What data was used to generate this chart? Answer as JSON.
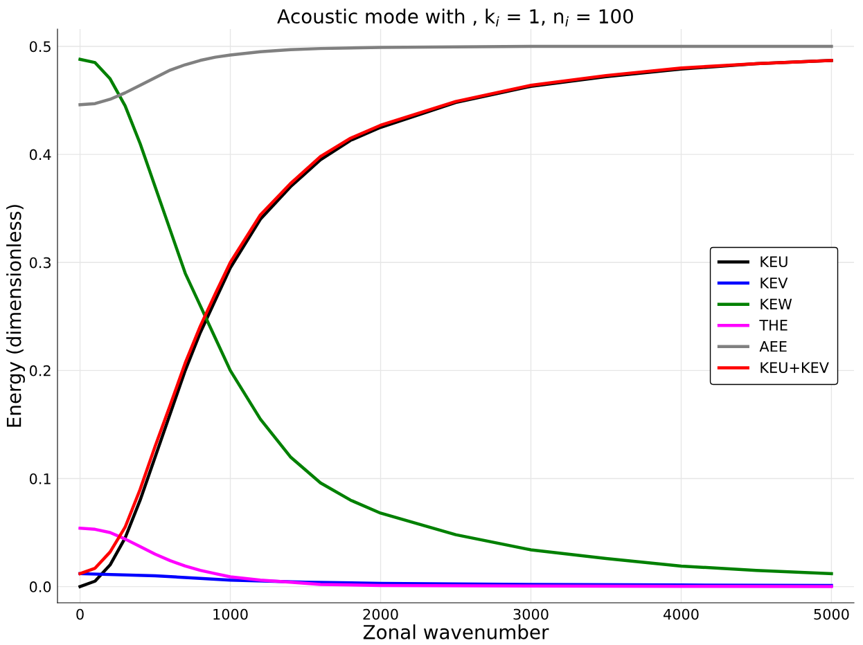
{
  "chart_data": {
    "type": "line",
    "title": "Acoustic mode with , k$_{i}$ = 1, n$_{i}$ = 100",
    "xlabel": "Zonal wavenumber",
    "ylabel": "Energy (dimensionless)",
    "xlim": [
      -150,
      5150
    ],
    "ylim": [
      -0.015,
      0.516
    ],
    "xticks": [
      0,
      1000,
      2000,
      3000,
      4000,
      5000
    ],
    "yticks": [
      {
        "value": 0,
        "label": "0.0"
      },
      0.1,
      0.2,
      0.3,
      0.4,
      0.5
    ],
    "grid": true,
    "legend": "right",
    "line_style": "solid",
    "marker": "none",
    "series": [
      {
        "name": "KEU",
        "color": "#000000",
        "x": [
          0,
          100,
          200,
          300,
          400,
          500,
          600,
          700,
          800,
          900,
          1000,
          1200,
          1400,
          1600,
          1800,
          2000,
          2500,
          3000,
          3500,
          4000,
          4500,
          5000
        ],
        "values": [
          0,
          0.005,
          0.02,
          0.045,
          0.08,
          0.12,
          0.16,
          0.2,
          0.235,
          0.265,
          0.295,
          0.34,
          0.37,
          0.395,
          0.413,
          0.425,
          0.448,
          0.463,
          0.472,
          0.479,
          0.484,
          0.487
        ]
      },
      {
        "name": "KEV",
        "color": "#0000ff",
        "x": [
          0,
          500,
          1000,
          1500,
          2000,
          3000,
          4000,
          5000
        ],
        "values": [
          0.012,
          0.01,
          0.006,
          0.004,
          0.003,
          0.002,
          0.0015,
          0.001
        ]
      },
      {
        "name": "KEW",
        "color": "#008000",
        "x": [
          0,
          100,
          200,
          300,
          400,
          500,
          600,
          700,
          800,
          900,
          1000,
          1200,
          1400,
          1600,
          1800,
          2000,
          2500,
          3000,
          3500,
          4000,
          4500,
          5000
        ],
        "values": [
          0.488,
          0.485,
          0.47,
          0.445,
          0.41,
          0.37,
          0.33,
          0.29,
          0.26,
          0.23,
          0.2,
          0.155,
          0.12,
          0.096,
          0.08,
          0.068,
          0.048,
          0.034,
          0.026,
          0.019,
          0.015,
          0.012
        ]
      },
      {
        "name": "THE",
        "color": "#ff00ff",
        "x": [
          0,
          100,
          200,
          300,
          400,
          500,
          600,
          700,
          800,
          900,
          1000,
          1200,
          1400,
          1600,
          2000,
          3000,
          4000,
          5000
        ],
        "values": [
          0.054,
          0.053,
          0.05,
          0.044,
          0.037,
          0.03,
          0.024,
          0.019,
          0.015,
          0.012,
          0.009,
          0.006,
          0.004,
          0.002,
          0.001,
          0.0005,
          0.0002,
          0.0001
        ]
      },
      {
        "name": "AEE",
        "color": "#808080",
        "x": [
          0,
          100,
          200,
          300,
          400,
          500,
          600,
          700,
          800,
          900,
          1000,
          1200,
          1400,
          1600,
          2000,
          3000,
          5000
        ],
        "values": [
          0.446,
          0.447,
          0.451,
          0.457,
          0.464,
          0.471,
          0.478,
          0.483,
          0.487,
          0.49,
          0.492,
          0.495,
          0.497,
          0.498,
          0.499,
          0.5,
          0.5
        ]
      },
      {
        "name": "KEU+KEV",
        "color": "#ff0000",
        "x": [
          0,
          100,
          200,
          300,
          400,
          500,
          600,
          700,
          800,
          900,
          1000,
          1200,
          1400,
          1600,
          1800,
          2000,
          2500,
          3000,
          3500,
          4000,
          4500,
          5000
        ],
        "values": [
          0.012,
          0.017,
          0.032,
          0.055,
          0.09,
          0.13,
          0.168,
          0.207,
          0.241,
          0.271,
          0.3,
          0.344,
          0.373,
          0.398,
          0.415,
          0.427,
          0.449,
          0.464,
          0.473,
          0.48,
          0.484,
          0.487
        ]
      }
    ]
  }
}
